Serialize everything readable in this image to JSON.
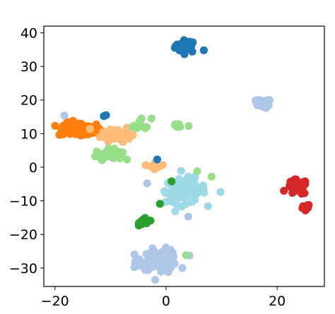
{
  "chart_data": {
    "type": "scatter",
    "title": "",
    "xlabel": "",
    "ylabel": "",
    "xlim": [
      -22,
      28.5
    ],
    "ylim": [
      -35.5,
      42
    ],
    "grid": false,
    "legend": "none",
    "xticks": [
      -20,
      0,
      20
    ],
    "yticks": [
      40,
      30,
      20,
      10,
      0,
      -10,
      -20,
      -30
    ],
    "xtick_labels": [
      "−20",
      "0",
      "20"
    ],
    "ytick_labels": [
      "40",
      "30",
      "20",
      "10",
      "0",
      "−10",
      "−20",
      "−30"
    ],
    "clusters": [
      {
        "color": "#1f77b4",
        "center": [
          3.6,
          36.0
        ],
        "spread": [
          1.3,
          1.2
        ],
        "count": 38
      },
      {
        "color": "#aec7e8",
        "center": [
          17.5,
          19.0
        ],
        "spread": [
          0.9,
          0.9
        ],
        "count": 25
      },
      {
        "color": "#ff7f0e",
        "center": [
          -15.5,
          11.2
        ],
        "spread": [
          2.6,
          1.4
        ],
        "count": 90
      },
      {
        "color": "#ffbb78",
        "center": [
          -9.0,
          10.0
        ],
        "spread": [
          1.8,
          1.6
        ],
        "count": 35
      },
      {
        "color": "#98df8a",
        "center": [
          -10.3,
          3.8
        ],
        "spread": [
          1.6,
          1.0
        ],
        "count": 35
      },
      {
        "color": "#98df8a",
        "center": [
          2.2,
          12.4
        ],
        "spread": [
          0.9,
          0.6
        ],
        "count": 10
      },
      {
        "color": "#98df8a",
        "center": [
          -4.6,
          12.8
        ],
        "spread": [
          1.3,
          1.3
        ],
        "count": 10
      },
      {
        "color": "#ffbb78",
        "center": [
          -1.7,
          0.5
        ],
        "spread": [
          0.9,
          0.7
        ],
        "count": 14
      },
      {
        "color": "#9edae5",
        "center": [
          3.5,
          -7.0
        ],
        "spread": [
          2.4,
          2.4
        ],
        "count": 120
      },
      {
        "color": "#d62728",
        "center": [
          23.6,
          -6.0
        ],
        "spread": [
          1.2,
          1.5
        ],
        "count": 45
      },
      {
        "color": "#d62728",
        "center": [
          25.0,
          -12.0
        ],
        "spread": [
          0.6,
          0.7
        ],
        "count": 10
      },
      {
        "color": "#2ca02c",
        "center": [
          -3.9,
          -16.2
        ],
        "spread": [
          0.6,
          0.6
        ],
        "count": 30
      },
      {
        "color": "#aec7e8",
        "center": [
          -1.0,
          -27.5
        ],
        "spread": [
          2.2,
          2.0
        ],
        "count": 80
      },
      {
        "color": "#aec7e8",
        "center": [
          -5.2,
          -29.0
        ],
        "spread": [
          0.8,
          0.9
        ],
        "count": 10
      }
    ],
    "points": [
      {
        "x": -11.2,
        "y": 15.2,
        "color": "#1f77b4"
      },
      {
        "x": -10.8,
        "y": 15.5,
        "color": "#1f77b4"
      },
      {
        "x": -1.6,
        "y": 2.3,
        "color": "#1f77b4"
      },
      {
        "x": -18.3,
        "y": 15.4,
        "color": "#aec7e8"
      },
      {
        "x": 9.8,
        "y": -7.4,
        "color": "#9edae5"
      },
      {
        "x": 8.2,
        "y": -2.8,
        "color": "#98df8a"
      },
      {
        "x": 5.6,
        "y": -1.2,
        "color": "#98df8a"
      },
      {
        "x": -1.1,
        "y": -10.9,
        "color": "#2ca02c"
      },
      {
        "x": 1.0,
        "y": -4.2,
        "color": "#2ca02c"
      },
      {
        "x": 3.6,
        "y": -26.2,
        "color": "#98df8a"
      },
      {
        "x": 6.8,
        "y": 34.8,
        "color": "#1f77b4"
      },
      {
        "x": -3.4,
        "y": -4.8,
        "color": "#aec7e8"
      },
      {
        "x": 4.0,
        "y": -14.7,
        "color": "#aec7e8"
      },
      {
        "x": 0.4,
        "y": -31.2,
        "color": "#aec7e8"
      }
    ]
  }
}
